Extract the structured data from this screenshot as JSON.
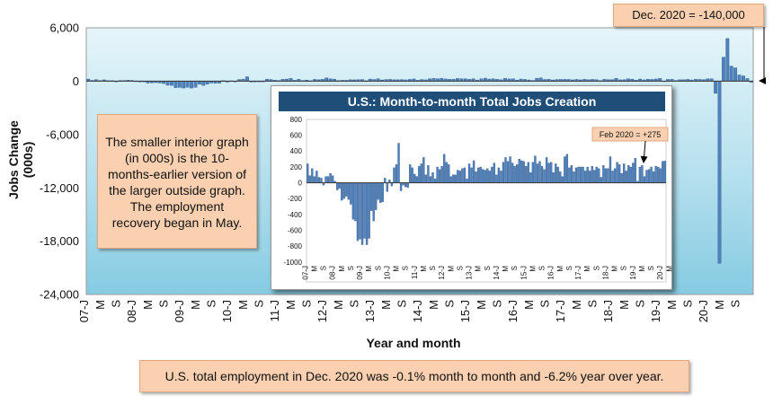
{
  "title_callout": "Dec. 2020 = -140,000",
  "note": "The smaller interior graph (in 000s) is the 10-months-earlier version of the larger outside graph. The employment recovery began in May.",
  "footer": "U.S. total employment in Dec. 2020 was -0.1% month to month and -6.2% year over year.",
  "inset_title": "U.S.: Month-to-month Total Jobs Creation",
  "inset_callout": "Feb 2020 = +275",
  "colors": {
    "bar": "#4f81bd",
    "panel_light": "#e6f5fa",
    "panel_dark": "#8ecfe4",
    "title_bg": "#1f4e79",
    "callout_bg": "#fad0b0"
  },
  "chart_data": [
    {
      "type": "bar",
      "xlabel": "Year and month",
      "ylabel": "Jobs Change (000s)",
      "ylim": [
        -24000,
        6000
      ],
      "yticks": [
        "6,000",
        "0",
        "-6,000",
        "-12,000",
        "-18,000",
        "-24,000"
      ],
      "xticks": [
        "07-J",
        "M",
        "S",
        "08-J",
        "M",
        "S",
        "09-J",
        "M",
        "S",
        "10-J",
        "M",
        "S",
        "11-J",
        "M",
        "S",
        "12-J",
        "M",
        "S",
        "13-J",
        "M",
        "S",
        "14-J",
        "M",
        "S",
        "15-J",
        "M",
        "S",
        "16-J",
        "M",
        "S",
        "17-J",
        "M",
        "S",
        "18-J",
        "M",
        "S",
        "19-J",
        "M",
        "S",
        "20-J",
        "M",
        "S"
      ],
      "start": "2007-01",
      "end": "2020-12",
      "annotation": {
        "text": "Dec. 2020 = -140,000",
        "x": "2020-12",
        "y": -140
      },
      "values": [
        240,
        90,
        180,
        80,
        150,
        70,
        60,
        -30,
        80,
        80,
        120,
        90,
        20,
        -90,
        -70,
        -220,
        -200,
        -170,
        -210,
        -270,
        -460,
        -480,
        -730,
        -710,
        -780,
        -700,
        -780,
        -700,
        -350,
        -480,
        -340,
        -210,
        -250,
        -240,
        60,
        -110,
        40,
        -40,
        190,
        230,
        500,
        -100,
        -30,
        -50,
        -60,
        230,
        190,
        110,
        80,
        210,
        240,
        320,
        100,
        220,
        80,
        130,
        50,
        200,
        170,
        210,
        360,
        260,
        230,
        80,
        100,
        100,
        160,
        150,
        180,
        190,
        50,
        240,
        190,
        280,
        140,
        190,
        200,
        170,
        160,
        180,
        150,
        200,
        250,
        100,
        190,
        150,
        260,
        320,
        270,
        330,
        250,
        210,
        230,
        300,
        280,
        270,
        210,
        260,
        130,
        260,
        340,
        240,
        270,
        210,
        170,
        320,
        250,
        260,
        130,
        240,
        200,
        140,
        80,
        330,
        360,
        190,
        220,
        140,
        190,
        200,
        200,
        200,
        150,
        200,
        150,
        210,
        160,
        200,
        180,
        70,
        220,
        180,
        180,
        330,
        150,
        180,
        260,
        230,
        120,
        240,
        150,
        220,
        200,
        250,
        310,
        20,
        200,
        220,
        80,
        160,
        170,
        200,
        140,
        210,
        200,
        180,
        270,
        275,
        -1370,
        -20500,
        2700,
        4800,
        1700,
        1500,
        700,
        600,
        300,
        -140
      ]
    },
    {
      "type": "bar",
      "title": "U.S.: Month-to-month Total Jobs Creation",
      "ylim": [
        -1000,
        800
      ],
      "yticks": [
        "800",
        "600",
        "400",
        "200",
        "0",
        "-200",
        "-400",
        "-600",
        "-800",
        "-1000"
      ],
      "xticks": [
        "07-J",
        "M",
        "S",
        "08-J",
        "M",
        "S",
        "09-J",
        "M",
        "S",
        "10-J",
        "M",
        "S",
        "11-J",
        "M",
        "S",
        "12-J",
        "M",
        "S",
        "13-J",
        "M",
        "S",
        "14-J",
        "M",
        "S",
        "15-J",
        "M",
        "S",
        "16-J",
        "M",
        "S",
        "17-J",
        "M",
        "S",
        "18-J",
        "M",
        "S",
        "19-J",
        "M",
        "S",
        "20-J",
        "M",
        "S"
      ],
      "start": "2007-01",
      "end": "2020-02",
      "annotation": {
        "text": "Feb 2020 = +275",
        "x": "2020-02",
        "y": 275
      },
      "values": [
        240,
        90,
        180,
        80,
        150,
        70,
        60,
        -30,
        80,
        80,
        120,
        90,
        20,
        -90,
        -70,
        -220,
        -200,
        -170,
        -210,
        -270,
        -460,
        -480,
        -730,
        -710,
        -780,
        -700,
        -780,
        -700,
        -350,
        -480,
        -340,
        -210,
        -250,
        -240,
        60,
        -110,
        40,
        -40,
        190,
        230,
        500,
        -100,
        -30,
        -50,
        -60,
        230,
        190,
        110,
        80,
        210,
        240,
        320,
        100,
        220,
        80,
        130,
        50,
        200,
        170,
        210,
        360,
        260,
        230,
        80,
        100,
        100,
        160,
        150,
        180,
        190,
        50,
        240,
        190,
        280,
        140,
        190,
        200,
        170,
        160,
        180,
        150,
        200,
        250,
        100,
        190,
        150,
        260,
        320,
        270,
        330,
        250,
        210,
        230,
        300,
        280,
        270,
        210,
        260,
        130,
        260,
        340,
        240,
        270,
        210,
        170,
        320,
        250,
        260,
        130,
        240,
        200,
        140,
        80,
        330,
        360,
        190,
        220,
        140,
        190,
        200,
        200,
        200,
        150,
        200,
        150,
        210,
        160,
        200,
        180,
        70,
        220,
        180,
        180,
        330,
        150,
        180,
        260,
        230,
        120,
        240,
        150,
        220,
        200,
        250,
        310,
        20,
        200,
        220,
        80,
        160,
        170,
        200,
        140,
        210,
        200,
        180,
        270,
        275
      ]
    }
  ]
}
